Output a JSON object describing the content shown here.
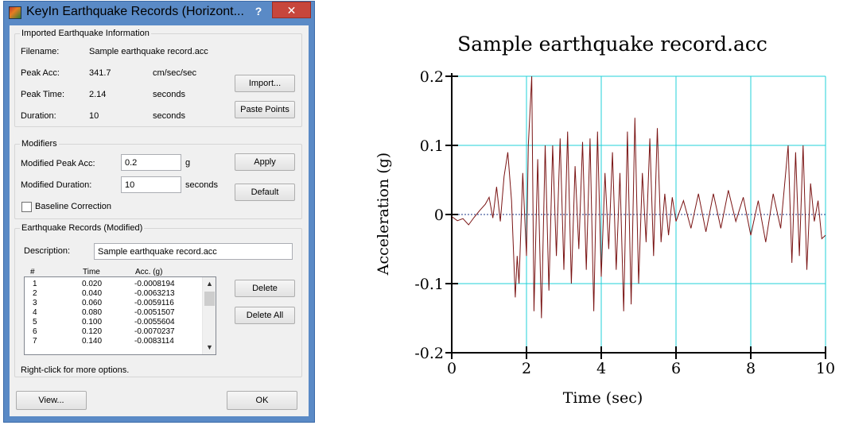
{
  "window": {
    "title": "KeyIn Earthquake Records (Horizont...",
    "help_label": "?",
    "close_label": "✕",
    "app_icon": "keyin-app-icon"
  },
  "imported": {
    "legend": "Imported Earthquake Information",
    "filename_label": "Filename:",
    "filename_value": "Sample earthquake record.acc",
    "peak_acc_label": "Peak Acc:",
    "peak_acc_value": "341.7",
    "peak_acc_unit": "cm/sec/sec",
    "peak_time_label": "Peak Time:",
    "peak_time_value": "2.14",
    "peak_time_unit": "seconds",
    "duration_label": "Duration:",
    "duration_value": "10",
    "duration_unit": "seconds",
    "import_button": "Import...",
    "paste_button": "Paste Points"
  },
  "modifiers": {
    "legend": "Modifiers",
    "peak_label": "Modified Peak Acc:",
    "peak_value": "0.2",
    "peak_unit": "g",
    "duration_label": "Modified Duration:",
    "duration_value": "10",
    "duration_unit": "seconds",
    "baseline_label": "Baseline Correction",
    "baseline_checked": false,
    "apply_button": "Apply",
    "default_button": "Default"
  },
  "records": {
    "legend": "Earthquake Records (Modified)",
    "description_label": "Description:",
    "description_value": "Sample earthquake record.acc",
    "columns": [
      "#",
      "Time",
      "Acc. (g)"
    ],
    "rows": [
      [
        "1",
        "0.020",
        "-0.0008194"
      ],
      [
        "2",
        "0.040",
        "-0.0063213"
      ],
      [
        "3",
        "0.060",
        "-0.0059116"
      ],
      [
        "4",
        "0.080",
        "-0.0051507"
      ],
      [
        "5",
        "0.100",
        "-0.0055604"
      ],
      [
        "6",
        "0.120",
        "-0.0070237"
      ],
      [
        "7",
        "0.140",
        "-0.0083114"
      ]
    ],
    "delete_button": "Delete",
    "delete_all_button": "Delete All",
    "hint": "Right-click for more options."
  },
  "footer": {
    "view_button": "View...",
    "ok_button": "OK"
  },
  "colors": {
    "series": "#7a1414",
    "grid": "#22d0d8",
    "zero_line": "#1c3a8a",
    "title_bar": "#5a8ac6",
    "close": "#c7463c"
  },
  "chart_data": {
    "type": "line",
    "title": "Sample earthquake record.acc",
    "xlabel": "Time (sec)",
    "ylabel": "Acceleration (g)",
    "xlim": [
      0,
      10
    ],
    "ylim": [
      -0.2,
      0.2
    ],
    "x_ticks": [
      0,
      2,
      4,
      6,
      8,
      10
    ],
    "y_ticks": [
      0.2,
      0.1,
      0,
      -0.1,
      -0.2
    ],
    "x_tick_labels": [
      "0",
      "2",
      "4",
      "6",
      "8",
      "10"
    ],
    "y_tick_labels": [
      "0.2",
      "0.1",
      "0",
      "-0.1",
      "-0.2"
    ],
    "grid": true,
    "series": [
      {
        "x": [
          0,
          0.15,
          0.3,
          0.45,
          0.6,
          0.75,
          0.9,
          1.0,
          1.1,
          1.2,
          1.3,
          1.4,
          1.5,
          1.6,
          1.7,
          1.75,
          1.8,
          1.9,
          2.0,
          2.05,
          2.14,
          2.2,
          2.3,
          2.4,
          2.5,
          2.6,
          2.7,
          2.8,
          2.9,
          3.0,
          3.1,
          3.2,
          3.3,
          3.4,
          3.5,
          3.6,
          3.7,
          3.8,
          3.9,
          4.0,
          4.1,
          4.2,
          4.3,
          4.4,
          4.5,
          4.6,
          4.7,
          4.8,
          4.9,
          5.0,
          5.1,
          5.2,
          5.3,
          5.4,
          5.5,
          5.6,
          5.7,
          5.8,
          5.9,
          6.0,
          6.2,
          6.4,
          6.6,
          6.8,
          7.0,
          7.2,
          7.4,
          7.6,
          7.8,
          8.0,
          8.2,
          8.4,
          8.6,
          8.8,
          9.0,
          9.1,
          9.2,
          9.3,
          9.4,
          9.5,
          9.6,
          9.7,
          9.8,
          9.9,
          10.0
        ],
        "y": [
          -0.003,
          -0.009,
          -0.006,
          -0.015,
          -0.004,
          0.006,
          0.015,
          0.025,
          -0.005,
          0.04,
          -0.01,
          0.055,
          0.09,
          0.02,
          -0.12,
          -0.06,
          -0.1,
          0.06,
          -0.06,
          0.1,
          0.2,
          -0.14,
          0.08,
          -0.15,
          0.1,
          -0.11,
          0.1,
          -0.06,
          0.11,
          -0.08,
          0.12,
          -0.1,
          0.07,
          -0.05,
          0.105,
          -0.08,
          0.11,
          -0.14,
          0.12,
          -0.09,
          0.06,
          -0.05,
          0.09,
          -0.08,
          0.06,
          -0.14,
          0.12,
          -0.13,
          0.14,
          -0.1,
          0.06,
          -0.04,
          0.11,
          -0.06,
          0.125,
          -0.04,
          0.03,
          -0.03,
          0.025,
          -0.01,
          0.02,
          -0.02,
          0.03,
          -0.025,
          0.03,
          -0.02,
          0.035,
          -0.01,
          0.025,
          -0.03,
          0.02,
          -0.04,
          0.03,
          -0.02,
          0.1,
          -0.07,
          0.09,
          -0.06,
          0.1,
          -0.08,
          0.045,
          -0.01,
          0.02,
          -0.035,
          -0.03
        ]
      }
    ]
  }
}
